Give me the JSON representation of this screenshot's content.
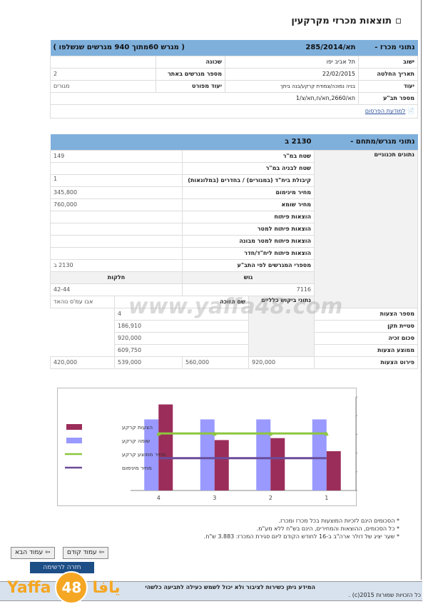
{
  "page_title": "תוצאות מכרזי מקרקעין",
  "tender": {
    "header_label": "נתוני מכרז -",
    "number": "תא/285/2014",
    "plots_note": "( מגרש 60מתוך 940 מגרשים שנשלפו )",
    "rows": [
      {
        "l1": "ישוב",
        "v1": "תל אביב יפו",
        "l2": "שכונה",
        "v2": ""
      },
      {
        "l1": "תאריך החלטה",
        "v1": "22/02/2015",
        "l2": "מספר מגרשים באתר",
        "v2": "2"
      },
      {
        "l1": "יעוד",
        "v1": "בניה נמוכה/צמודת קרקע/בנה ביתך",
        "l2": "יעוד מפורט",
        "v2": "מגורים"
      }
    ],
    "plan_label": "מספר תב\"ע",
    "plan_value": "תא/2660,תא/ח,תא/צ/1",
    "notice_link": "למודעת הפרסום"
  },
  "plot": {
    "header_label": "נתוני מגרש/מתחם -",
    "number": "2130 ב",
    "planning_group": "נתונים תכנוניים",
    "planning_rows": [
      {
        "label": "שטח במ\"ר",
        "value": "149"
      },
      {
        "label": "שטח לבניה במ\"ר",
        "value": ""
      },
      {
        "label": "קיבולת ביח\"ד (במגורים) / בחדרים (במלונאות)",
        "value": "1"
      },
      {
        "label": "מחיר מינימום",
        "value": "345,800"
      },
      {
        "label": "מחיר שומא",
        "value": "760,000"
      },
      {
        "label": "הוצאות פיתוח",
        "value": ""
      },
      {
        "label": "הוצאות פיתוח למטר",
        "value": ""
      },
      {
        "label": "הוצאות פיתוח למטר מבונה",
        "value": ""
      },
      {
        "label": "הוצאות פיתוח ליח\"ד/חדר",
        "value": ""
      },
      {
        "label": "מספרי המגרשים לפי התב\"ע",
        "value": "2130 ב"
      }
    ],
    "gush_header": "גוש",
    "helka_header": "חלקות",
    "gush": "7116",
    "helka": "42-44",
    "demand_group": "נתוני ביקוש כלליים",
    "demand_rows": [
      {
        "label": "שם הזוכה",
        "value": "אבו עמ'ס נוהאד"
      },
      {
        "label": "מספר הצעות",
        "value": "4"
      },
      {
        "label": "סטיית תקן",
        "value": "186,910"
      },
      {
        "label": "סכום זכיה",
        "value": "920,000"
      },
      {
        "label": "ממוצע הצעות",
        "value": "609,750"
      }
    ],
    "offers_label": "פירוט הצעות",
    "offers": [
      "920,000",
      "560,000",
      "539,000",
      "420,000"
    ]
  },
  "chart_data": {
    "type": "bar",
    "categories": [
      "4",
      "3",
      "2",
      "1"
    ],
    "ylim": [
      0,
      1000000
    ],
    "yticks": [
      "0",
      "200000",
      "400000",
      "600000",
      "800000",
      "1000000"
    ],
    "legend_position": "left",
    "series": [
      {
        "name": "הצעות קרקע",
        "type": "bar",
        "color": "#9b2d5a",
        "values": [
          920000,
          539000,
          560000,
          420000
        ]
      },
      {
        "name": "שומה קרקע",
        "type": "bar",
        "color": "#9999ff",
        "values": [
          760000,
          760000,
          760000,
          760000
        ]
      },
      {
        "name": "מחיר ממוצע קרקע",
        "type": "line",
        "color": "#8dc63f",
        "values": [
          609750,
          609750,
          609750,
          609750
        ]
      },
      {
        "name": "מחיר מינימום",
        "type": "line",
        "color": "#6b4c9a",
        "values": [
          345800,
          345800,
          345800,
          345800
        ]
      }
    ]
  },
  "notes": [
    "* הסכומים הינם לזכיות המוצעות בכל מכרז ומכרז.",
    "* כל הסכומים, ההוצאות והמחירים, הינם בש\"ח ללא מע\"מ.",
    "* שער יציג של דולר ארה\"ב ב-16 לחודש הקודם ליום סגירת המכרז: 3.883 ש\"ח."
  ],
  "nav": {
    "prev": "עמוד קודם",
    "next": "עמוד הבא",
    "back": "חזרה לרשימה"
  },
  "footer": {
    "disclaimer": "המידע ניתן כשירות לציבור ולא יכול לשמש כעילה לתביעה כלשהי",
    "copyright": "כל הזכויות שמורות 2015(c) ."
  },
  "watermark": {
    "text": "www.yaffa48.com",
    "logo_latin": "Yaffa",
    "logo_num": "48",
    "logo_arabic": "يافا"
  }
}
